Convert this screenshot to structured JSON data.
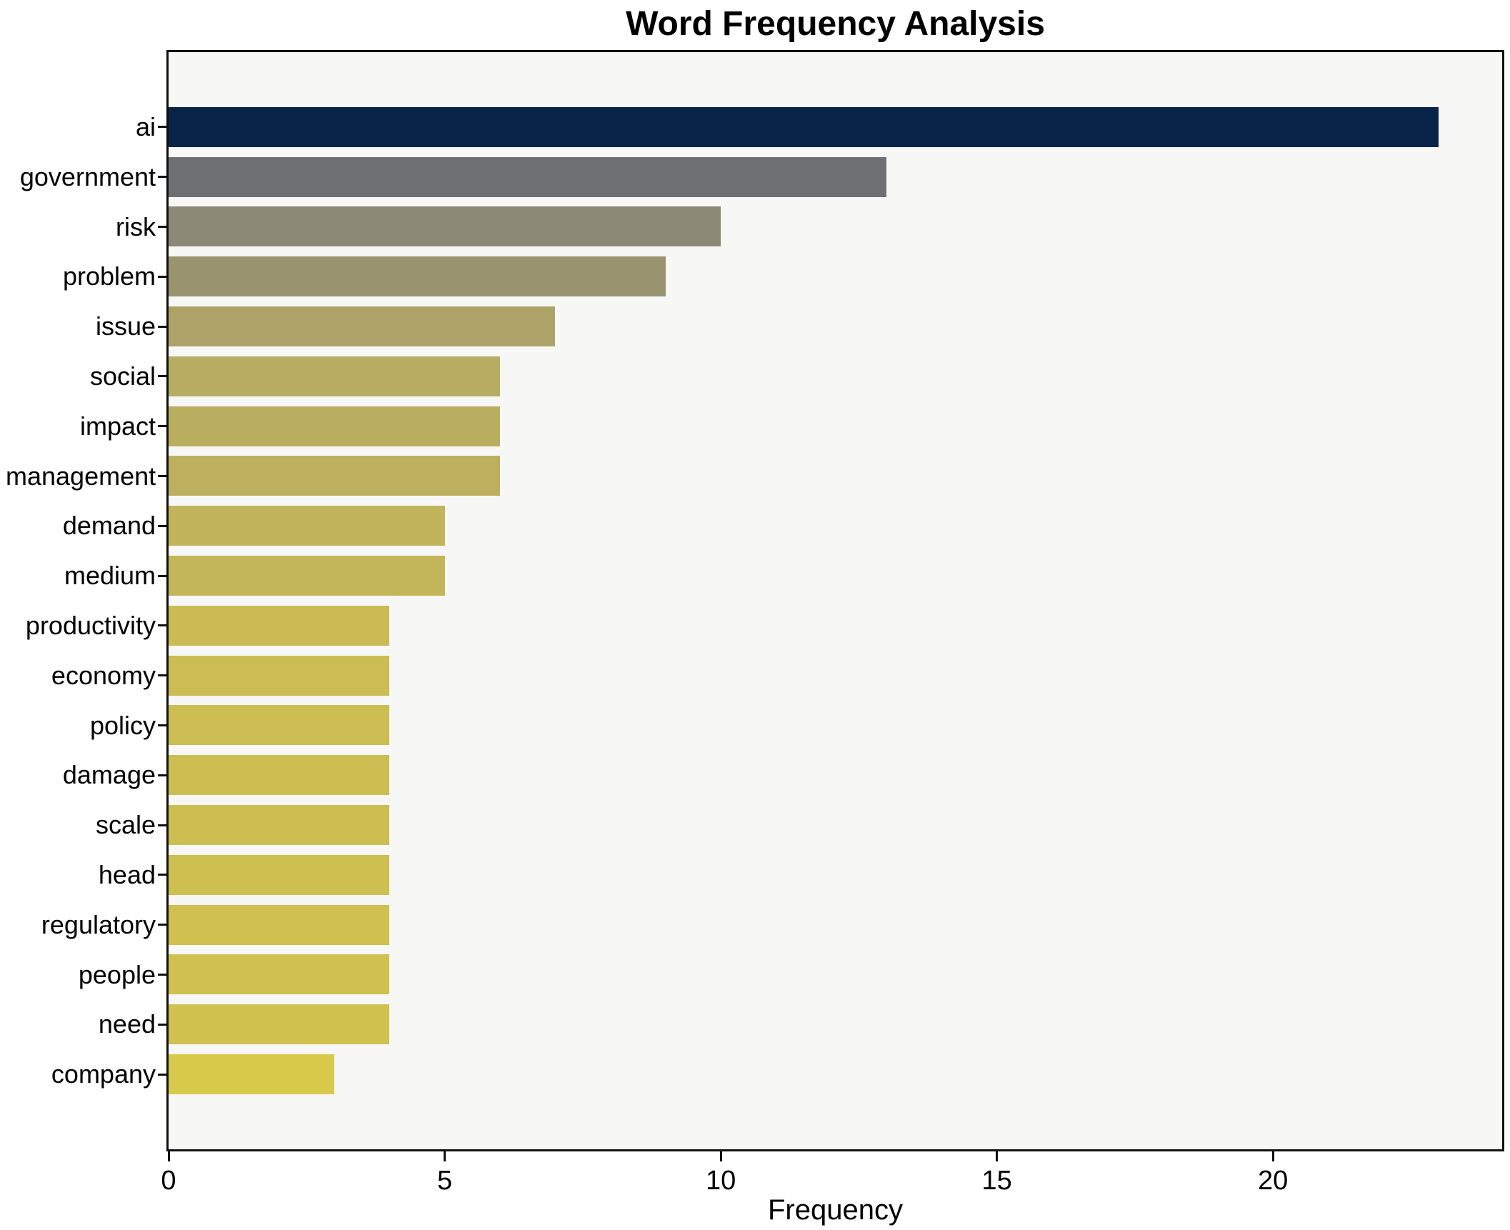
{
  "chart_data": {
    "type": "bar",
    "orientation": "horizontal",
    "title": "Word Frequency Analysis",
    "xlabel": "Frequency",
    "ylabel": "",
    "categories": [
      "ai",
      "government",
      "risk",
      "problem",
      "issue",
      "social",
      "impact",
      "management",
      "demand",
      "medium",
      "productivity",
      "economy",
      "policy",
      "damage",
      "scale",
      "head",
      "regulatory",
      "people",
      "need",
      "company"
    ],
    "values": [
      23,
      13,
      10,
      9,
      7,
      6,
      6,
      6,
      5,
      5,
      4,
      4,
      4,
      4,
      4,
      4,
      4,
      4,
      4,
      3
    ],
    "bar_colors": [
      "#072448",
      "#6e6f72",
      "#8c8976",
      "#9a936f",
      "#ada268",
      "#b7ac62",
      "#b9ad60",
      "#bcb05e",
      "#c2b45a",
      "#c3b559",
      "#cabb54",
      "#cbbc53",
      "#ccbd53",
      "#cdbe52",
      "#cdbe51",
      "#cebf51",
      "#cfc050",
      "#d0c04f",
      "#d1c14e",
      "#d9c94a"
    ],
    "xticks": [
      0,
      5,
      10,
      15,
      20
    ],
    "xlim": [
      0,
      24.15
    ],
    "grid": false,
    "legend": null,
    "plot_background": "#f7f7f5",
    "figure_background": "#ffffff",
    "spine_color": "#111111",
    "text_color": "#000000"
  }
}
